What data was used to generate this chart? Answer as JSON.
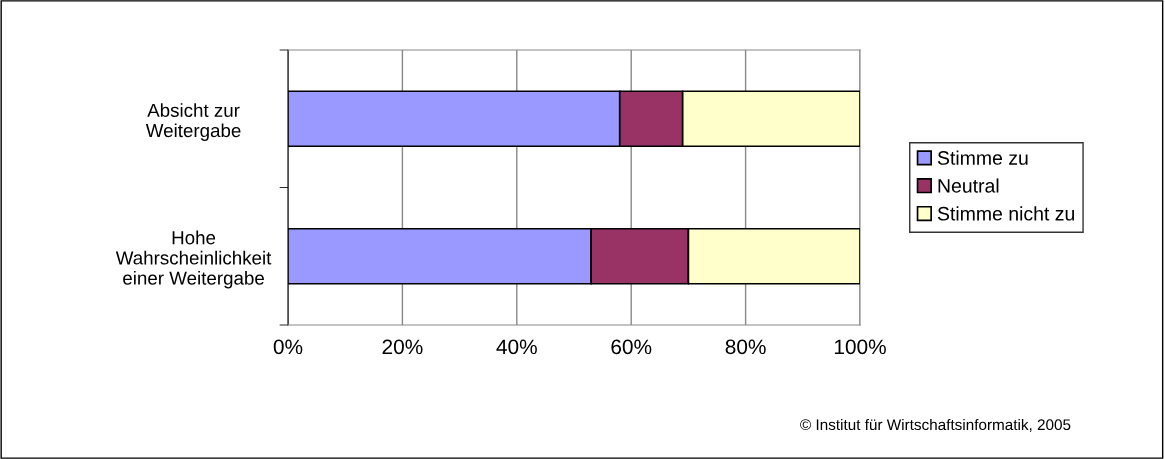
{
  "chart_data": {
    "type": "bar",
    "orientation": "horizontal",
    "stacked": true,
    "categories": [
      "Absicht zur\nWeitergabe",
      "Hohe\nWahrscheinlichkeit\neiner Weitergabe"
    ],
    "series": [
      {
        "name": "Stimme zu",
        "color": "#9999ff",
        "values": [
          58,
          53
        ]
      },
      {
        "name": "Neutral",
        "color": "#993366",
        "values": [
          11,
          17
        ]
      },
      {
        "name": "Stimme nicht zu",
        "color": "#ffffcc",
        "values": [
          31,
          30
        ]
      }
    ],
    "xlim": [
      0,
      100
    ],
    "xticks": [
      {
        "value": 0,
        "label": "0%"
      },
      {
        "value": 20,
        "label": "20%"
      },
      {
        "value": 40,
        "label": "40%"
      },
      {
        "value": 60,
        "label": "60%"
      },
      {
        "value": 80,
        "label": "80%"
      },
      {
        "value": 100,
        "label": "100%"
      }
    ],
    "grid": "x",
    "legend": "right",
    "annotations": [
      "© Institut für Wirtschaftsinformatik, 2005"
    ]
  }
}
